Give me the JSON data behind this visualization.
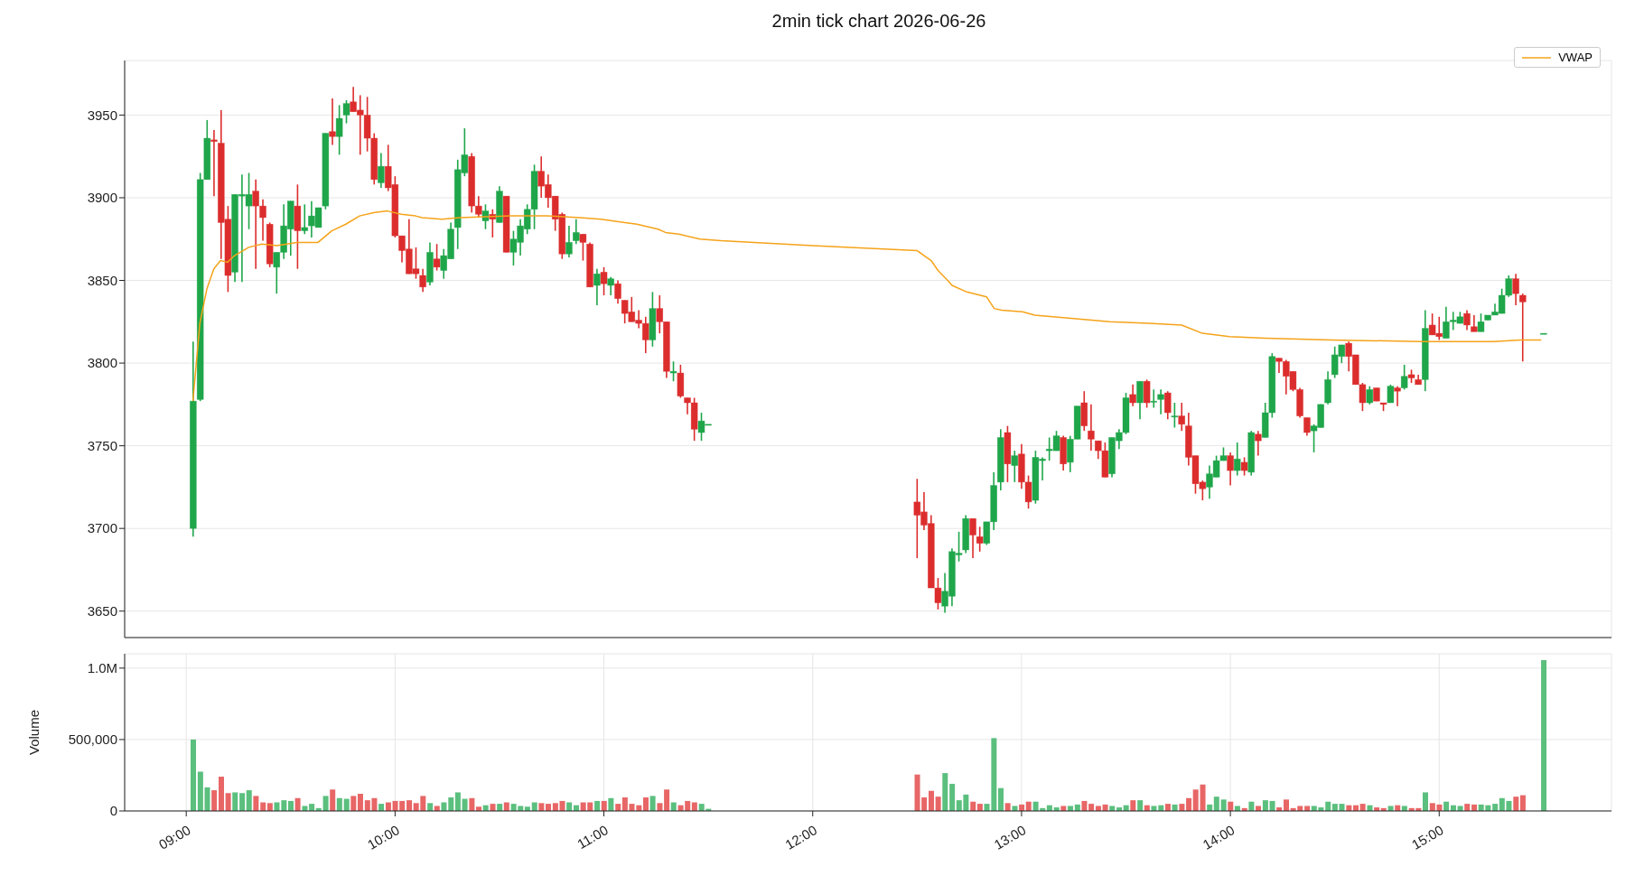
{
  "chart_data": [
    {
      "type": "candlestick",
      "title": "2min tick chart 2026-06-26",
      "x": [
        9.033,
        9.067,
        9.1,
        9.133,
        9.167,
        9.2,
        9.233,
        9.267,
        9.3,
        9.333,
        9.367,
        9.4,
        9.433,
        9.467,
        9.5,
        9.533,
        9.567,
        9.6,
        9.633,
        9.667,
        9.7,
        9.733,
        9.767,
        9.8,
        9.833,
        9.867,
        9.9,
        9.933,
        9.967,
        10,
        10.033,
        10.067,
        10.1,
        10.133,
        10.167,
        10.2,
        10.233,
        10.267,
        10.3,
        10.333,
        10.367,
        10.4,
        10.433,
        10.467,
        10.5,
        10.533,
        10.567,
        10.6,
        10.633,
        10.667,
        10.7,
        10.733,
        10.767,
        10.8,
        10.833,
        10.867,
        10.9,
        10.933,
        10.967,
        11,
        11.033,
        11.067,
        11.1,
        11.133,
        11.167,
        11.2,
        11.233,
        11.267,
        11.3,
        11.333,
        11.367,
        11.4,
        11.433,
        11.467,
        11.5,
        12.5,
        12.533,
        12.567,
        12.6,
        12.633,
        12.667,
        12.7,
        12.733,
        12.767,
        12.8,
        12.833,
        12.867,
        12.9,
        12.933,
        12.967,
        13,
        13.033,
        13.067,
        13.1,
        13.133,
        13.167,
        13.2,
        13.233,
        13.267,
        13.3,
        13.333,
        13.367,
        13.4,
        13.433,
        13.467,
        13.5,
        13.533,
        13.567,
        13.6,
        13.633,
        13.667,
        13.7,
        13.733,
        13.767,
        13.8,
        13.833,
        13.867,
        13.9,
        13.933,
        13.967,
        14,
        14.033,
        14.067,
        14.1,
        14.133,
        14.167,
        14.2,
        14.233,
        14.267,
        14.3,
        14.333,
        14.367,
        14.4,
        14.433,
        14.467,
        14.5,
        14.533,
        14.567,
        14.6,
        14.633,
        14.667,
        14.7,
        14.733,
        14.767,
        14.8,
        14.833,
        14.867,
        14.9,
        14.933,
        14.967,
        15,
        15.033,
        15.067,
        15.1,
        15.133,
        15.167,
        15.2,
        15.233,
        15.267,
        15.3,
        15.333,
        15.367,
        15.4,
        15.5
      ],
      "ohlc": [
        [
          3700,
          3813,
          3695,
          3777
        ],
        [
          3778,
          3915,
          3777,
          3911
        ],
        [
          3911,
          3947,
          3911,
          3936
        ],
        [
          3935,
          3941,
          3901,
          3934
        ],
        [
          3933,
          3953,
          3863,
          3885
        ],
        [
          3887,
          3895,
          3843,
          3853
        ],
        [
          3855,
          3902,
          3849,
          3902
        ],
        [
          3901,
          3914,
          3849,
          3902
        ],
        [
          3895,
          3915,
          3881,
          3902
        ],
        [
          3904,
          3911,
          3857,
          3895
        ],
        [
          3895,
          3899,
          3874,
          3888
        ],
        [
          3884,
          3885,
          3858,
          3860
        ],
        [
          3858,
          3867,
          3842,
          3867
        ],
        [
          3867,
          3896,
          3863,
          3883
        ],
        [
          3881,
          3898,
          3865,
          3898
        ],
        [
          3895,
          3908,
          3857,
          3880
        ],
        [
          3880,
          3896,
          3878,
          3882
        ],
        [
          3883,
          3898,
          3876,
          3889
        ],
        [
          3882,
          3894,
          3882,
          3894
        ],
        [
          3895,
          3939,
          3893,
          3939
        ],
        [
          3940,
          3960,
          3932,
          3937
        ],
        [
          3937,
          3956,
          3926,
          3948
        ],
        [
          3950,
          3959,
          3945,
          3957
        ],
        [
          3958,
          3967,
          3952,
          3952
        ],
        [
          3953,
          3962,
          3926,
          3950
        ],
        [
          3950,
          3961,
          3928,
          3936
        ],
        [
          3936,
          3939,
          3908,
          3911
        ],
        [
          3909,
          3927,
          3906,
          3919
        ],
        [
          3919,
          3932,
          3904,
          3906
        ],
        [
          3908,
          3913,
          3876,
          3877
        ],
        [
          3877,
          3877,
          3861,
          3868
        ],
        [
          3869,
          3887,
          3854,
          3854
        ],
        [
          3857,
          3870,
          3851,
          3854
        ],
        [
          3853,
          3857,
          3843,
          3846
        ],
        [
          3849,
          3873,
          3847,
          3867
        ],
        [
          3863,
          3872,
          3856,
          3858
        ],
        [
          3856,
          3869,
          3851,
          3865
        ],
        [
          3863,
          3885,
          3863,
          3881
        ],
        [
          3882,
          3923,
          3869,
          3917
        ],
        [
          3915,
          3942,
          3913,
          3926
        ],
        [
          3925,
          3927,
          3891,
          3895
        ],
        [
          3895,
          3901,
          3888,
          3890
        ],
        [
          3886,
          3896,
          3881,
          3892
        ],
        [
          3890,
          3893,
          3876,
          3887
        ],
        [
          3885,
          3907,
          3885,
          3904
        ],
        [
          3901,
          3901,
          3867,
          3867
        ],
        [
          3867,
          3880,
          3859,
          3875
        ],
        [
          3873,
          3887,
          3865,
          3883
        ],
        [
          3881,
          3896,
          3878,
          3893
        ],
        [
          3893,
          3920,
          3881,
          3916
        ],
        [
          3916,
          3925,
          3900,
          3907
        ],
        [
          3908,
          3914,
          3894,
          3900
        ],
        [
          3901,
          3901,
          3880,
          3887
        ],
        [
          3890,
          3891,
          3863,
          3866
        ],
        [
          3866,
          3883,
          3864,
          3873
        ],
        [
          3874,
          3887,
          3872,
          3879
        ],
        [
          3878,
          3878,
          3862,
          3873
        ],
        [
          3872,
          3873,
          3846,
          3846
        ],
        [
          3847,
          3857,
          3835,
          3854
        ],
        [
          3855,
          3858,
          3841,
          3848
        ],
        [
          3847,
          3852,
          3841,
          3851
        ],
        [
          3848,
          3850,
          3836,
          3839
        ],
        [
          3838,
          3838,
          3824,
          3830
        ],
        [
          3831,
          3840,
          3825,
          3825
        ],
        [
          3826,
          3832,
          3821,
          3824
        ],
        [
          3824,
          3828,
          3806,
          3814
        ],
        [
          3814,
          3843,
          3810,
          3833
        ],
        [
          3833,
          3841,
          3818,
          3825
        ],
        [
          3825,
          3825,
          3791,
          3795
        ],
        [
          3794,
          3801,
          3789,
          3795
        ],
        [
          3794,
          3799,
          3779,
          3780
        ],
        [
          3779,
          3779,
          3769,
          3776
        ],
        [
          3776,
          3779,
          3753,
          3760
        ],
        [
          3758,
          3770,
          3753,
          3765
        ],
        [
          3763,
          3763,
          3763,
          3763
        ],
        [
          3716,
          3730,
          3682,
          3708
        ],
        [
          3710,
          3722,
          3699,
          3702
        ],
        [
          3703,
          3708,
          3664,
          3664
        ],
        [
          3664,
          3670,
          3651,
          3655
        ],
        [
          3653,
          3673,
          3649,
          3662
        ],
        [
          3659,
          3688,
          3653,
          3686
        ],
        [
          3684,
          3698,
          3680,
          3685
        ],
        [
          3687,
          3708,
          3685,
          3706
        ],
        [
          3706,
          3706,
          3682,
          3696
        ],
        [
          3695,
          3701,
          3686,
          3691
        ],
        [
          3691,
          3704,
          3690,
          3704
        ],
        [
          3704,
          3734,
          3699,
          3726
        ],
        [
          3728,
          3760,
          3723,
          3755
        ],
        [
          3758,
          3762,
          3728,
          3739
        ],
        [
          3738,
          3747,
          3728,
          3744
        ],
        [
          3745,
          3751,
          3724,
          3728
        ],
        [
          3728,
          3732,
          3712,
          3716
        ],
        [
          3717,
          3747,
          3715,
          3743
        ],
        [
          3741,
          3743,
          3729,
          3742
        ],
        [
          3747,
          3755,
          3741,
          3748
        ],
        [
          3747,
          3759,
          3747,
          3756
        ],
        [
          3755,
          3756,
          3735,
          3739
        ],
        [
          3740,
          3756,
          3734,
          3754
        ],
        [
          3754,
          3774,
          3754,
          3774
        ],
        [
          3776,
          3783,
          3759,
          3762
        ],
        [
          3759,
          3775,
          3747,
          3754
        ],
        [
          3753,
          3753,
          3742,
          3747
        ],
        [
          3747,
          3752,
          3731,
          3731
        ],
        [
          3733,
          3755,
          3731,
          3755
        ],
        [
          3753,
          3760,
          3748,
          3758
        ],
        [
          3758,
          3782,
          3757,
          3779
        ],
        [
          3781,
          3787,
          3774,
          3776
        ],
        [
          3776,
          3789,
          3766,
          3789
        ],
        [
          3789,
          3790,
          3773,
          3776
        ],
        [
          3777,
          3784,
          3773,
          3777
        ],
        [
          3778,
          3784,
          3769,
          3781
        ],
        [
          3782,
          3783,
          3766,
          3770
        ],
        [
          3768,
          3776,
          3761,
          3768
        ],
        [
          3768,
          3776,
          3759,
          3763
        ],
        [
          3762,
          3770,
          3738,
          3743
        ],
        [
          3744,
          3744,
          3721,
          3727
        ],
        [
          3728,
          3729,
          3717,
          3724
        ],
        [
          3725,
          3738,
          3718,
          3733
        ],
        [
          3731,
          3744,
          3731,
          3741
        ],
        [
          3741,
          3749,
          3741,
          3744
        ],
        [
          3744,
          3746,
          3726,
          3735
        ],
        [
          3735,
          3752,
          3732,
          3742
        ],
        [
          3740,
          3743,
          3732,
          3735
        ],
        [
          3734,
          3759,
          3732,
          3758
        ],
        [
          3757,
          3759,
          3744,
          3753
        ],
        [
          3755,
          3776,
          3755,
          3770
        ],
        [
          3770,
          3806,
          3767,
          3804
        ],
        [
          3803,
          3803,
          3794,
          3801
        ],
        [
          3801,
          3802,
          3781,
          3792
        ],
        [
          3795,
          3795,
          3783,
          3784
        ],
        [
          3784,
          3785,
          3767,
          3768
        ],
        [
          3767,
          3767,
          3756,
          3758
        ],
        [
          3759,
          3763,
          3746,
          3762
        ],
        [
          3761,
          3775,
          3761,
          3775
        ],
        [
          3776,
          3795,
          3775,
          3790
        ],
        [
          3793,
          3810,
          3791,
          3805
        ],
        [
          3804,
          3811,
          3800,
          3811
        ],
        [
          3812,
          3813,
          3795,
          3804
        ],
        [
          3805,
          3805,
          3787,
          3787
        ],
        [
          3787,
          3788,
          3771,
          3776
        ],
        [
          3776,
          3786,
          3775,
          3784
        ],
        [
          3785,
          3785,
          3777,
          3777
        ],
        [
          3776,
          3776,
          3771,
          3775
        ],
        [
          3776,
          3787,
          3776,
          3786
        ],
        [
          3785,
          3786,
          3774,
          3783
        ],
        [
          3785,
          3799,
          3784,
          3792
        ],
        [
          3793,
          3796,
          3788,
          3791
        ],
        [
          3790,
          3793,
          3787,
          3787
        ],
        [
          3790,
          3832,
          3783,
          3821
        ],
        [
          3823,
          3830,
          3817,
          3817
        ],
        [
          3818,
          3828,
          3814,
          3816
        ],
        [
          3815,
          3834,
          3815,
          3825
        ],
        [
          3825,
          3831,
          3820,
          3826
        ],
        [
          3824,
          3831,
          3824,
          3828
        ],
        [
          3830,
          3832,
          3820,
          3823
        ],
        [
          3822,
          3829,
          3819,
          3819
        ],
        [
          3819,
          3830,
          3819,
          3825
        ],
        [
          3826,
          3829,
          3826,
          3829
        ],
        [
          3829,
          3836,
          3829,
          3831
        ],
        [
          3830,
          3845,
          3830,
          3841
        ],
        [
          3841,
          3853,
          3840,
          3851
        ],
        [
          3851,
          3854,
          3835,
          3842
        ],
        [
          3841,
          3842,
          3801,
          3837
        ],
        [
          3818,
          3818,
          3818,
          3818
        ]
      ],
      "colors": [
        "#1fa64a",
        "#1fa64a",
        "#1fa64a",
        "#dc2d2d",
        "#dc2d2d",
        "#dc2d2d",
        "#1fa64a",
        "#1fa64a",
        "#1fa64a",
        "#dc2d2d",
        "#dc2d2d",
        "#dc2d2d",
        "#1fa64a",
        "#1fa64a",
        "#1fa64a",
        "#dc2d2d",
        "#1fa64a",
        "#1fa64a",
        "#1fa64a",
        "#1fa64a",
        "#dc2d2d",
        "#1fa64a",
        "#1fa64a",
        "#dc2d2d",
        "#dc2d2d",
        "#dc2d2d",
        "#dc2d2d",
        "#1fa64a",
        "#dc2d2d",
        "#dc2d2d",
        "#dc2d2d",
        "#dc2d2d",
        "#dc2d2d",
        "#dc2d2d",
        "#1fa64a",
        "#dc2d2d",
        "#1fa64a",
        "#1fa64a",
        "#1fa64a",
        "#1fa64a",
        "#dc2d2d",
        "#dc2d2d",
        "#1fa64a",
        "#dc2d2d",
        "#1fa64a",
        "#dc2d2d",
        "#1fa64a",
        "#1fa64a",
        "#1fa64a",
        "#1fa64a",
        "#dc2d2d",
        "#dc2d2d",
        "#dc2d2d",
        "#dc2d2d",
        "#1fa64a",
        "#1fa64a",
        "#dc2d2d",
        "#dc2d2d",
        "#1fa64a",
        "#dc2d2d",
        "#1fa64a",
        "#dc2d2d",
        "#dc2d2d",
        "#dc2d2d",
        "#dc2d2d",
        "#dc2d2d",
        "#1fa64a",
        "#dc2d2d",
        "#dc2d2d",
        "#1fa64a",
        "#dc2d2d",
        "#dc2d2d",
        "#dc2d2d",
        "#1fa64a",
        "#1fa64a",
        "#dc2d2d",
        "#dc2d2d",
        "#dc2d2d",
        "#dc2d2d",
        "#1fa64a",
        "#1fa64a",
        "#1fa64a",
        "#1fa64a",
        "#dc2d2d",
        "#dc2d2d",
        "#1fa64a",
        "#1fa64a",
        "#1fa64a",
        "#dc2d2d",
        "#1fa64a",
        "#dc2d2d",
        "#dc2d2d",
        "#1fa64a",
        "#1fa64a",
        "#1fa64a",
        "#1fa64a",
        "#dc2d2d",
        "#1fa64a",
        "#1fa64a",
        "#dc2d2d",
        "#dc2d2d",
        "#dc2d2d",
        "#dc2d2d",
        "#1fa64a",
        "#1fa64a",
        "#1fa64a",
        "#dc2d2d",
        "#1fa64a",
        "#dc2d2d",
        "#1fa64a",
        "#1fa64a",
        "#dc2d2d",
        "#1fa64a",
        "#dc2d2d",
        "#dc2d2d",
        "#dc2d2d",
        "#dc2d2d",
        "#1fa64a",
        "#1fa64a",
        "#1fa64a",
        "#dc2d2d",
        "#1fa64a",
        "#dc2d2d",
        "#1fa64a",
        "#dc2d2d",
        "#1fa64a",
        "#1fa64a",
        "#dc2d2d",
        "#dc2d2d",
        "#dc2d2d",
        "#dc2d2d",
        "#dc2d2d",
        "#1fa64a",
        "#1fa64a",
        "#1fa64a",
        "#1fa64a",
        "#1fa64a",
        "#dc2d2d",
        "#dc2d2d",
        "#dc2d2d",
        "#1fa64a",
        "#dc2d2d",
        "#dc2d2d",
        "#1fa64a",
        "#dc2d2d",
        "#1fa64a",
        "#dc2d2d",
        "#dc2d2d",
        "#1fa64a",
        "#dc2d2d",
        "#dc2d2d",
        "#1fa64a",
        "#1fa64a",
        "#1fa64a",
        "#dc2d2d",
        "#dc2d2d",
        "#1fa64a",
        "#1fa64a",
        "#1fa64a",
        "#1fa64a",
        "#1fa64a",
        "#dc2d2d",
        "#dc2d2d",
        "#1fa64a"
      ],
      "series": [
        {
          "name": "VWAP",
          "type": "line",
          "color": "#f5a31a",
          "x": [
            9.032,
            9.065,
            9.099,
            9.132,
            9.164,
            9.197,
            9.231,
            9.299,
            9.362,
            9.434,
            9.53,
            9.631,
            9.697,
            9.764,
            9.83,
            9.897,
            9.963,
            10.03,
            10.098,
            10.129,
            10.224,
            10.31,
            10.555,
            10.727,
            10.885,
            10.986,
            11.101,
            11.158,
            11.259,
            11.295,
            11.359,
            11.46,
            11.56,
            12,
            12.5,
            12.567,
            12.6,
            12.646,
            12.667,
            12.738,
            12.833,
            12.869,
            12.905,
            13.005,
            13.063,
            13.25,
            13.422,
            13.609,
            13.767,
            13.866,
            13.996,
            14.168,
            14.484,
            14.915,
            15.259,
            15.389,
            15.489
          ],
          "values": [
            3777,
            3824,
            3845,
            3857,
            3862,
            3861,
            3865,
            3870,
            3872,
            3871,
            3873,
            3873,
            3880,
            3884,
            3889,
            3891,
            3892,
            3890,
            3889,
            3888,
            3887,
            3888,
            3889,
            3889,
            3888,
            3887,
            3885,
            3884,
            3881,
            3879,
            3878,
            3875,
            3874,
            3871,
            3868,
            3862,
            3856,
            3850,
            3847,
            3843,
            3840,
            3833,
            3832,
            3831,
            3829,
            3827,
            3825,
            3824,
            3823,
            3818,
            3816,
            3815,
            3814,
            3813,
            3813,
            3814,
            3814
          ]
        }
      ],
      "xlim": [
        8.705,
        15.825
      ],
      "xticks": [
        {
          "value": 9,
          "label": null
        },
        {
          "value": 10,
          "label": null
        },
        {
          "value": 11,
          "label": null
        },
        {
          "value": 12,
          "label": null
        },
        {
          "value": 13,
          "label": null
        },
        {
          "value": 14,
          "label": null
        },
        {
          "value": 15,
          "label": null
        }
      ],
      "ylim": [
        3634,
        3983
      ],
      "yticks": [
        3650,
        3700,
        3750,
        3800,
        3850,
        3900,
        3950
      ],
      "grid": true,
      "legend": "top right",
      "tick_labels": "y"
    },
    {
      "type": "bar",
      "ylabel": "Volume",
      "x": [
        9.033,
        9.067,
        9.1,
        9.133,
        9.167,
        9.2,
        9.233,
        9.267,
        9.3,
        9.333,
        9.367,
        9.4,
        9.433,
        9.467,
        9.5,
        9.533,
        9.567,
        9.6,
        9.633,
        9.667,
        9.7,
        9.733,
        9.767,
        9.8,
        9.833,
        9.867,
        9.9,
        9.933,
        9.967,
        10,
        10.033,
        10.067,
        10.1,
        10.133,
        10.167,
        10.2,
        10.233,
        10.267,
        10.3,
        10.333,
        10.367,
        10.4,
        10.433,
        10.467,
        10.5,
        10.533,
        10.567,
        10.6,
        10.633,
        10.667,
        10.7,
        10.733,
        10.767,
        10.8,
        10.833,
        10.867,
        10.9,
        10.933,
        10.967,
        11,
        11.033,
        11.067,
        11.1,
        11.133,
        11.167,
        11.2,
        11.233,
        11.267,
        11.3,
        11.333,
        11.367,
        11.4,
        11.433,
        11.467,
        11.5,
        12.5,
        12.533,
        12.567,
        12.6,
        12.633,
        12.667,
        12.7,
        12.733,
        12.767,
        12.8,
        12.833,
        12.867,
        12.9,
        12.933,
        12.967,
        13,
        13.033,
        13.067,
        13.1,
        13.133,
        13.167,
        13.2,
        13.233,
        13.267,
        13.3,
        13.333,
        13.367,
        13.4,
        13.433,
        13.467,
        13.5,
        13.533,
        13.567,
        13.6,
        13.633,
        13.667,
        13.7,
        13.733,
        13.767,
        13.8,
        13.833,
        13.867,
        13.9,
        13.933,
        13.967,
        14,
        14.033,
        14.067,
        14.1,
        14.133,
        14.167,
        14.2,
        14.233,
        14.267,
        14.3,
        14.333,
        14.367,
        14.4,
        14.433,
        14.467,
        14.5,
        14.533,
        14.567,
        14.6,
        14.633,
        14.667,
        14.7,
        14.733,
        14.767,
        14.8,
        14.833,
        14.867,
        14.9,
        14.933,
        14.967,
        15,
        15.033,
        15.067,
        15.1,
        15.133,
        15.167,
        15.2,
        15.233,
        15.267,
        15.3,
        15.333,
        15.367,
        15.4,
        15.5
      ],
      "values": [
        500000,
        275000,
        165000,
        145000,
        240000,
        125000,
        130000,
        125000,
        145000,
        105000,
        60000,
        55000,
        60000,
        75000,
        70000,
        90000,
        35000,
        50000,
        20000,
        105000,
        150000,
        90000,
        85000,
        105000,
        120000,
        75000,
        90000,
        50000,
        60000,
        70000,
        70000,
        75000,
        55000,
        105000,
        55000,
        35000,
        60000,
        95000,
        130000,
        85000,
        90000,
        30000,
        40000,
        50000,
        50000,
        60000,
        50000,
        35000,
        30000,
        60000,
        55000,
        50000,
        55000,
        70000,
        60000,
        40000,
        60000,
        60000,
        70000,
        70000,
        90000,
        50000,
        95000,
        50000,
        40000,
        95000,
        105000,
        55000,
        150000,
        60000,
        40000,
        70000,
        60000,
        50000,
        15000,
        255000,
        95000,
        140000,
        100000,
        265000,
        190000,
        75000,
        115000,
        65000,
        50000,
        50000,
        510000,
        160000,
        55000,
        35000,
        45000,
        65000,
        65000,
        20000,
        40000,
        25000,
        35000,
        35000,
        45000,
        70000,
        50000,
        35000,
        45000,
        35000,
        25000,
        40000,
        75000,
        75000,
        40000,
        35000,
        40000,
        50000,
        45000,
        50000,
        90000,
        150000,
        185000,
        45000,
        100000,
        80000,
        65000,
        35000,
        20000,
        65000,
        35000,
        75000,
        70000,
        25000,
        80000,
        20000,
        35000,
        35000,
        35000,
        25000,
        65000,
        50000,
        50000,
        40000,
        40000,
        50000,
        40000,
        25000,
        20000,
        35000,
        40000,
        35000,
        20000,
        20000,
        130000,
        55000,
        45000,
        65000,
        40000,
        35000,
        50000,
        45000,
        45000,
        40000,
        50000,
        90000,
        70000,
        100000,
        110000,
        1055000
      ],
      "colors": [
        "#5bbf7e",
        "#5bbf7e",
        "#5bbf7e",
        "#e86666",
        "#e86666",
        "#e86666",
        "#5bbf7e",
        "#5bbf7e",
        "#5bbf7e",
        "#e86666",
        "#e86666",
        "#e86666",
        "#5bbf7e",
        "#5bbf7e",
        "#5bbf7e",
        "#e86666",
        "#5bbf7e",
        "#5bbf7e",
        "#5bbf7e",
        "#5bbf7e",
        "#e86666",
        "#5bbf7e",
        "#5bbf7e",
        "#e86666",
        "#e86666",
        "#e86666",
        "#e86666",
        "#5bbf7e",
        "#e86666",
        "#e86666",
        "#e86666",
        "#e86666",
        "#e86666",
        "#e86666",
        "#5bbf7e",
        "#e86666",
        "#5bbf7e",
        "#5bbf7e",
        "#5bbf7e",
        "#5bbf7e",
        "#e86666",
        "#e86666",
        "#5bbf7e",
        "#e86666",
        "#5bbf7e",
        "#e86666",
        "#5bbf7e",
        "#5bbf7e",
        "#5bbf7e",
        "#5bbf7e",
        "#e86666",
        "#e86666",
        "#e86666",
        "#e86666",
        "#5bbf7e",
        "#5bbf7e",
        "#e86666",
        "#e86666",
        "#5bbf7e",
        "#e86666",
        "#5bbf7e",
        "#e86666",
        "#e86666",
        "#e86666",
        "#e86666",
        "#e86666",
        "#5bbf7e",
        "#e86666",
        "#e86666",
        "#5bbf7e",
        "#e86666",
        "#e86666",
        "#e86666",
        "#5bbf7e",
        "#5bbf7e",
        "#e86666",
        "#e86666",
        "#e86666",
        "#e86666",
        "#5bbf7e",
        "#5bbf7e",
        "#5bbf7e",
        "#5bbf7e",
        "#e86666",
        "#e86666",
        "#5bbf7e",
        "#5bbf7e",
        "#5bbf7e",
        "#e86666",
        "#5bbf7e",
        "#e86666",
        "#e86666",
        "#5bbf7e",
        "#5bbf7e",
        "#5bbf7e",
        "#5bbf7e",
        "#e86666",
        "#5bbf7e",
        "#5bbf7e",
        "#e86666",
        "#e86666",
        "#e86666",
        "#e86666",
        "#5bbf7e",
        "#5bbf7e",
        "#5bbf7e",
        "#e86666",
        "#5bbf7e",
        "#e86666",
        "#5bbf7e",
        "#5bbf7e",
        "#e86666",
        "#5bbf7e",
        "#e86666",
        "#e86666",
        "#e86666",
        "#e86666",
        "#5bbf7e",
        "#5bbf7e",
        "#5bbf7e",
        "#e86666",
        "#5bbf7e",
        "#e86666",
        "#5bbf7e",
        "#e86666",
        "#5bbf7e",
        "#5bbf7e",
        "#e86666",
        "#e86666",
        "#e86666",
        "#e86666",
        "#e86666",
        "#5bbf7e",
        "#5bbf7e",
        "#5bbf7e",
        "#5bbf7e",
        "#5bbf7e",
        "#e86666",
        "#e86666",
        "#e86666",
        "#5bbf7e",
        "#e86666",
        "#e86666",
        "#5bbf7e",
        "#e86666",
        "#5bbf7e",
        "#e86666",
        "#e86666",
        "#5bbf7e",
        "#e86666",
        "#e86666",
        "#5bbf7e",
        "#5bbf7e",
        "#5bbf7e",
        "#e86666",
        "#e86666",
        "#5bbf7e",
        "#5bbf7e",
        "#5bbf7e",
        "#5bbf7e",
        "#5bbf7e",
        "#e86666",
        "#e86666",
        "#5bbf7e"
      ],
      "xlim": [
        8.705,
        15.825
      ],
      "xticks": [
        {
          "value": 9,
          "label": "09:00"
        },
        {
          "value": 10,
          "label": "10:00"
        },
        {
          "value": 11,
          "label": "11:00"
        },
        {
          "value": 12,
          "label": "12:00"
        },
        {
          "value": 13,
          "label": "13:00"
        },
        {
          "value": 14,
          "label": "14:00"
        },
        {
          "value": 15,
          "label": "15:00"
        }
      ],
      "ylim": [
        0,
        1100000
      ],
      "yticks": [
        0,
        {
          "value": 500000,
          "label": "500,000"
        },
        {
          "value": 1000000,
          "label": "1.0M"
        }
      ],
      "grid": true
    }
  ]
}
